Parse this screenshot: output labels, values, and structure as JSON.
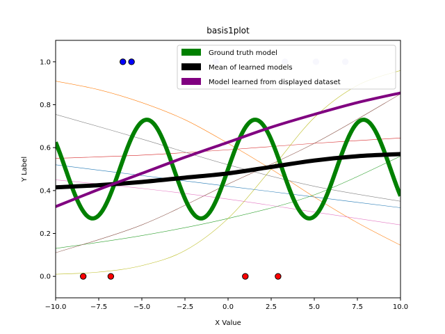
{
  "chart_data": {
    "type": "line",
    "title": "basis1plot",
    "xlabel": "X Value",
    "ylabel": "Y Label",
    "xlim": [
      -10,
      10
    ],
    "ylim": [
      -0.1,
      1.1
    ],
    "xticks": [
      -10,
      -7.5,
      -5,
      -2.5,
      0,
      2.5,
      5,
      7.5,
      10
    ],
    "xtick_labels": [
      "−10.0",
      "−7.5",
      "−5.0",
      "−2.5",
      "0.0",
      "2.5",
      "5.0",
      "7.5",
      "10.0"
    ],
    "yticks": [
      0,
      0.2,
      0.4,
      0.6,
      0.8,
      1.0
    ],
    "ytick_labels": [
      "0.0",
      "0.2",
      "0.4",
      "0.6",
      "0.8",
      "1.0"
    ],
    "grid": false,
    "legend_position": "top-right",
    "legend": [
      {
        "label": "Ground truth model",
        "color": "#008000"
      },
      {
        "label": "Mean of learned models",
        "color": "#000000"
      },
      {
        "label": "Model learned from displayed dataset",
        "color": "#800080"
      }
    ],
    "ground_truth": {
      "color": "#008000",
      "function": "0.5 + 0.23*sin(x)"
    },
    "mean_model": {
      "color": "#000000",
      "x": [
        -10,
        -7.5,
        -5,
        -2.5,
        0,
        2.5,
        5,
        7.5,
        10
      ],
      "y": [
        0.415,
        0.425,
        0.44,
        0.46,
        0.48,
        0.51,
        0.54,
        0.56,
        0.57
      ]
    },
    "displayed_model": {
      "color": "#800080",
      "x": [
        -10,
        -7.5,
        -5,
        -2.5,
        0,
        2.5,
        5,
        7.5,
        10
      ],
      "y": [
        0.325,
        0.405,
        0.48,
        0.555,
        0.625,
        0.695,
        0.755,
        0.81,
        0.855
      ]
    },
    "sample_models": [
      {
        "color": "#1f77b4",
        "x": [
          -10,
          -5,
          0,
          5,
          10
        ],
        "y": [
          0.52,
          0.47,
          0.42,
          0.37,
          0.32
        ]
      },
      {
        "color": "#ff7f0e",
        "x": [
          -10,
          -7.5,
          -5,
          -2.5,
          0,
          2.5,
          5,
          7.5,
          10
        ],
        "y": [
          0.91,
          0.87,
          0.81,
          0.73,
          0.62,
          0.5,
          0.37,
          0.25,
          0.145
        ]
      },
      {
        "color": "#2ca02c",
        "x": [
          -10,
          -5,
          0,
          5,
          10
        ],
        "y": [
          0.13,
          0.19,
          0.27,
          0.38,
          0.56
        ]
      },
      {
        "color": "#d62728",
        "x": [
          -10,
          -5,
          0,
          5,
          10
        ],
        "y": [
          0.55,
          0.565,
          0.59,
          0.62,
          0.645
        ]
      },
      {
        "color": "#8c564b",
        "x": [
          -10,
          -5,
          0,
          5,
          10
        ],
        "y": [
          0.11,
          0.24,
          0.43,
          0.62,
          0.85
        ]
      },
      {
        "color": "#7f7f7f",
        "x": [
          -10,
          -5,
          0,
          5,
          10
        ],
        "y": [
          0.755,
          0.64,
          0.52,
          0.42,
          0.35
        ]
      },
      {
        "color": "#e377c2",
        "x": [
          -10,
          -5,
          0,
          5,
          10
        ],
        "y": [
          0.45,
          0.41,
          0.36,
          0.3,
          0.24
        ]
      },
      {
        "color": "#bcbd22",
        "x": [
          -10,
          -7.5,
          -5,
          -2.5,
          0,
          2.5,
          5,
          7.5,
          10
        ],
        "y": [
          0.01,
          0.02,
          0.05,
          0.12,
          0.27,
          0.5,
          0.74,
          0.89,
          0.96
        ]
      }
    ],
    "points_class_1": {
      "color": "#0000ff",
      "x": [
        -6.1,
        -5.6
      ],
      "y": [
        1,
        1
      ]
    },
    "points_class_1_faded": {
      "color": "#c8c8f0",
      "x": [
        -0.7,
        3.3,
        5.1,
        6.8
      ],
      "y": [
        1,
        1,
        1,
        1
      ]
    },
    "points_class_0": {
      "color": "#ff0000",
      "x": [
        -8.4,
        -6.8,
        1.0,
        2.9
      ],
      "y": [
        0,
        0,
        0,
        0
      ]
    }
  }
}
